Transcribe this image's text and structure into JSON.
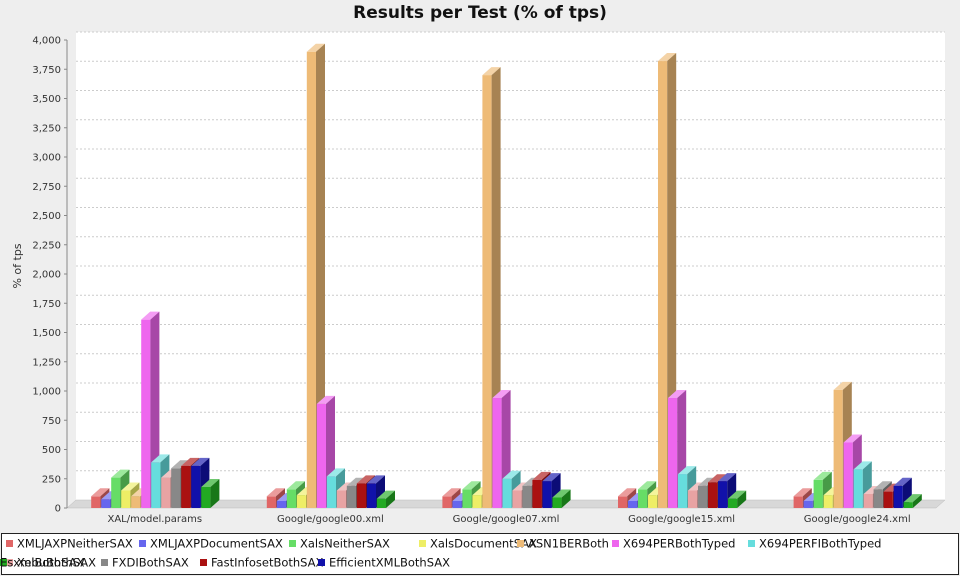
{
  "chart_data": {
    "type": "bar",
    "title": "Results per Test (% of tps)",
    "ylabel": "% of tps",
    "xlabel": "",
    "ylim": [
      0,
      4000
    ],
    "yticks": [
      0,
      250,
      500,
      750,
      1000,
      1250,
      1500,
      1750,
      2000,
      2250,
      2500,
      2750,
      3000,
      3250,
      3500,
      3750,
      4000
    ],
    "ytick_labels": [
      "0",
      "250",
      "500",
      "750",
      "1,000",
      "1,250",
      "1,500",
      "1,750",
      "2,000",
      "2,250",
      "2,500",
      "2,750",
      "3,000",
      "3,250",
      "3,500",
      "3,750",
      "4,000"
    ],
    "grid": true,
    "legend_position": "bottom",
    "categories": [
      "XAL/model.params",
      "Google/google00.xml",
      "Google/google07.xml",
      "Google/google15.xml",
      "Google/google24.xml"
    ],
    "series": [
      {
        "name": "XMLJAXPNeitherSAX",
        "color": "#e06666",
        "values": [
          100,
          100,
          100,
          100,
          100
        ]
      },
      {
        "name": "XMLJAXPDocumentSAX",
        "color": "#6666ee",
        "values": [
          75,
          60,
          60,
          60,
          60
        ]
      },
      {
        "name": "XalsNeitherSAX",
        "color": "#66dd66",
        "values": [
          260,
          160,
          160,
          160,
          240
        ]
      },
      {
        "name": "XalsDocumentSAX",
        "color": "#eeee66",
        "values": [
          150,
          110,
          110,
          110,
          110
        ]
      },
      {
        "name": "ASN1BERBoth",
        "color": "#eebb77",
        "values": [
          100,
          3900,
          3700,
          3820,
          1010
        ]
      },
      {
        "name": "X694PERBothTyped",
        "color": "#ee66ee",
        "values": [
          1610,
          890,
          940,
          940,
          560
        ]
      },
      {
        "name": "X694PERFIBothTyped",
        "color": "#66dddd",
        "values": [
          390,
          270,
          250,
          290,
          330
        ]
      },
      {
        "name": "XebuBothSAX",
        "color": "#e8a3a3",
        "values": [
          260,
          150,
          150,
          150,
          120
        ]
      },
      {
        "name": "FXDIBothSAX",
        "color": "#888888",
        "values": [
          340,
          190,
          190,
          190,
          160
        ]
      },
      {
        "name": "FastInfosetBothSAX",
        "color": "#aa1111",
        "values": [
          360,
          210,
          240,
          220,
          140
        ]
      },
      {
        "name": "EfficientXMLBothSAX",
        "color": "#1111aa",
        "values": [
          360,
          210,
          230,
          230,
          190
        ]
      },
      {
        "name": "EsxmlBothSAX",
        "color": "#22aa22",
        "values": [
          180,
          80,
          90,
          80,
          50
        ]
      }
    ]
  }
}
